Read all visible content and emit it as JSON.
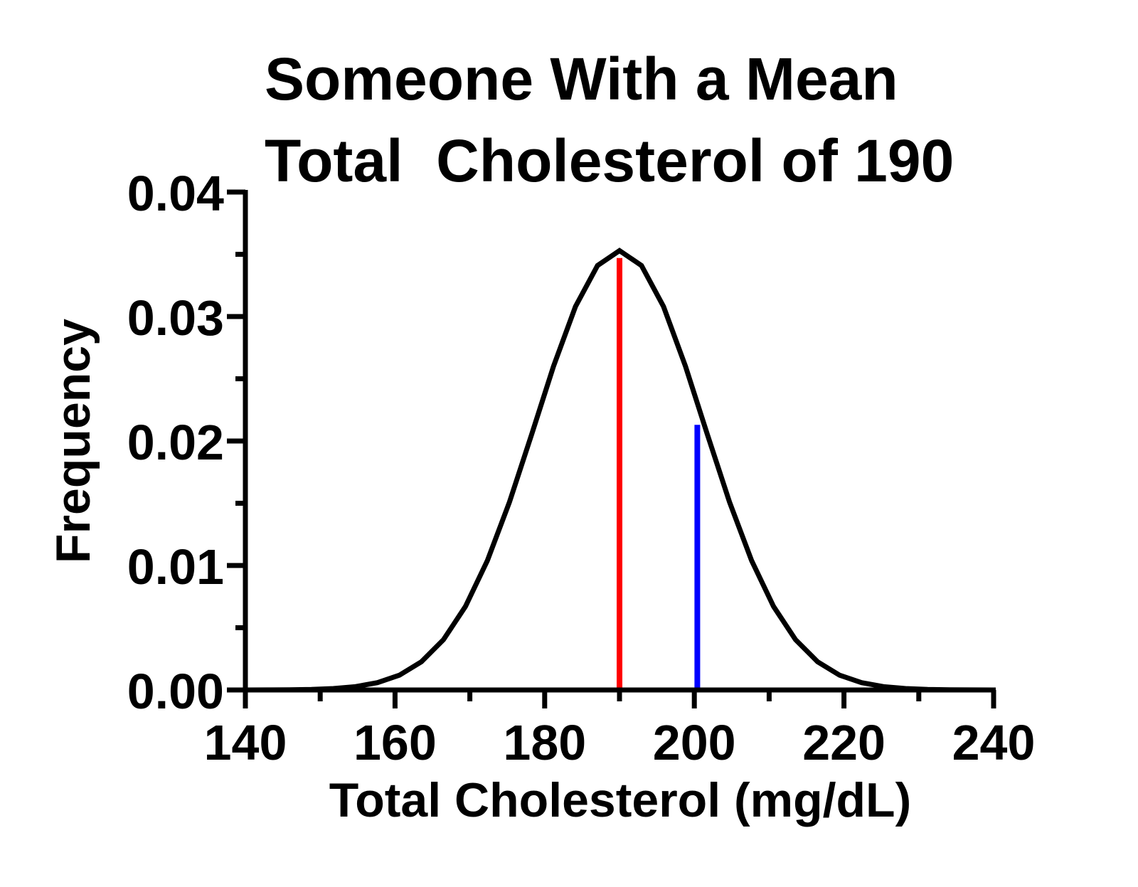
{
  "chart_data": {
    "type": "line",
    "title": [
      "Someone With a Mean",
      "Total  Cholesterol of 190"
    ],
    "xlabel": "Total Cholesterol (mg/dL)",
    "ylabel": "Frequency",
    "xlim": [
      140,
      240
    ],
    "ylim": [
      0,
      0.04
    ],
    "x_ticks": [
      "140",
      "160",
      "180",
      "200",
      "220",
      "240"
    ],
    "y_ticks": [
      "0.00",
      "0.01",
      "0.02",
      "0.03",
      "0.04"
    ],
    "grid": false,
    "legend": "none",
    "series": [
      {
        "color": "#000000",
        "x": [
          140,
          142.94,
          145.88,
          148.82,
          151.76,
          154.71,
          157.65,
          160.59,
          163.53,
          166.47,
          169.41,
          172.35,
          175.29,
          178.24,
          181.18,
          184.12,
          187.06,
          190,
          192.94,
          195.88,
          198.82,
          201.76,
          204.71,
          207.65,
          210.59,
          213.53,
          216.47,
          219.41,
          222.35,
          225.29,
          228.24,
          231.18,
          234.12,
          237.06,
          240
        ],
        "y": [
          2e-06,
          6e-06,
          1.74e-05,
          4.62e-05,
          0.000115,
          0.000269,
          0.000586,
          0.00119,
          0.00227,
          0.00404,
          0.00671,
          0.0104,
          0.0151,
          0.0205,
          0.026,
          0.0308,
          0.0341,
          0.0353,
          0.0341,
          0.0308,
          0.026,
          0.0205,
          0.0151,
          0.0104,
          0.00671,
          0.00404,
          0.00227,
          0.00119,
          0.000586,
          0.000269,
          0.000115,
          4.62e-05,
          1.74e-05,
          6e-06,
          2e-06
        ]
      }
    ],
    "vertical_lines": [
      {
        "x": 190,
        "y_top": 0.0347,
        "color": "#ff0000"
      },
      {
        "x": 200.4,
        "y_top": 0.0213,
        "color": "#0000ff"
      }
    ]
  }
}
